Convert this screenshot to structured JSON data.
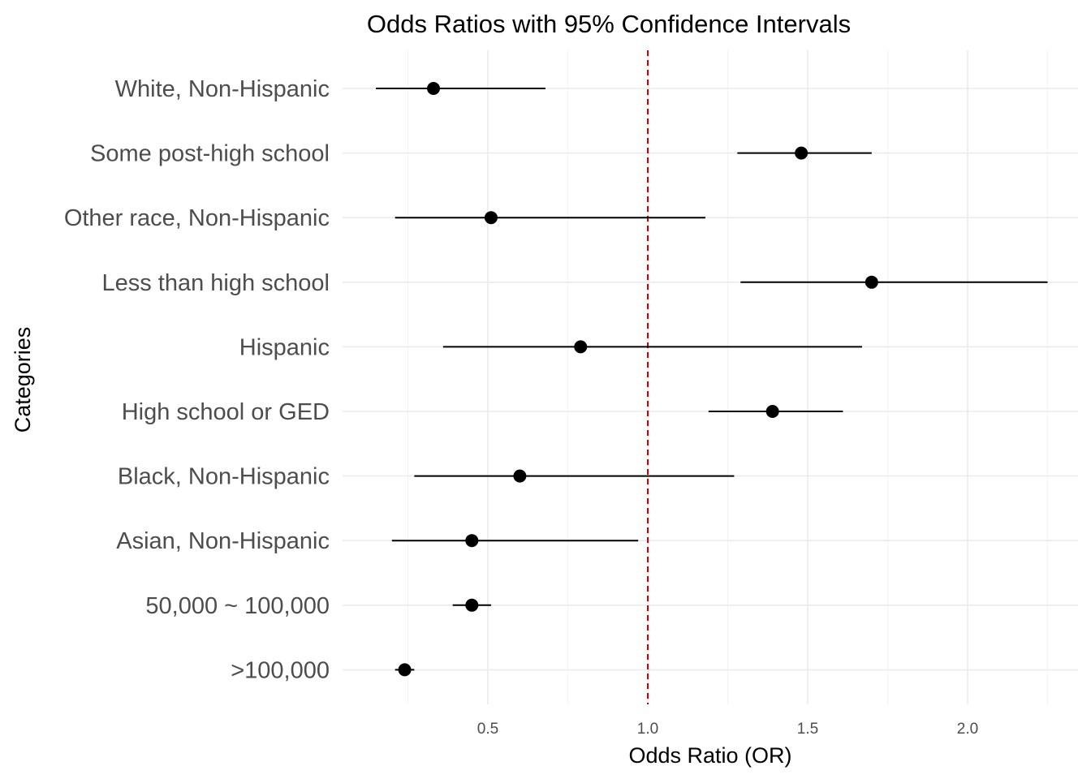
{
  "chart_data": {
    "type": "scatter",
    "subtype": "forest-plot",
    "title": "Odds Ratios with 95% Confidence Intervals",
    "xlabel": "Odds Ratio (OR)",
    "ylabel": "Categories",
    "xlim": [
      0.08,
      2.42
    ],
    "x_ticks": [
      {
        "value": 0.5,
        "label": "0.5"
      },
      {
        "value": 1.0,
        "label": "1.0"
      },
      {
        "value": 1.5,
        "label": "1.5"
      },
      {
        "value": 2.0,
        "label": "2.0"
      }
    ],
    "x_minor_ticks": [
      0.25,
      0.75,
      1.25,
      1.75,
      2.25
    ],
    "reference_line": {
      "value": 1.0,
      "color": "#cc0000",
      "style": "dashed"
    },
    "grid": true,
    "point_color": "#000000",
    "points": [
      {
        "category": "White, Non-Hispanic",
        "or": 0.33,
        "lower": 0.15,
        "upper": 0.68
      },
      {
        "category": "Some post-high school",
        "or": 1.48,
        "lower": 1.28,
        "upper": 1.7
      },
      {
        "category": "Other race, Non-Hispanic",
        "or": 0.51,
        "lower": 0.21,
        "upper": 1.18
      },
      {
        "category": "Less than high school",
        "or": 1.7,
        "lower": 1.29,
        "upper": 2.25
      },
      {
        "category": "Hispanic",
        "or": 0.79,
        "lower": 0.36,
        "upper": 1.67
      },
      {
        "category": "High school or GED",
        "or": 1.39,
        "lower": 1.19,
        "upper": 1.61
      },
      {
        "category": "Black, Non-Hispanic",
        "or": 0.6,
        "lower": 0.27,
        "upper": 1.27
      },
      {
        "category": "Asian, Non-Hispanic",
        "or": 0.45,
        "lower": 0.2,
        "upper": 0.97
      },
      {
        "category": "50,000 ~ 100,000",
        "or": 0.45,
        "lower": 0.39,
        "upper": 0.51
      },
      {
        "category": ">100,000",
        "or": 0.24,
        "lower": 0.21,
        "upper": 0.27
      }
    ]
  }
}
